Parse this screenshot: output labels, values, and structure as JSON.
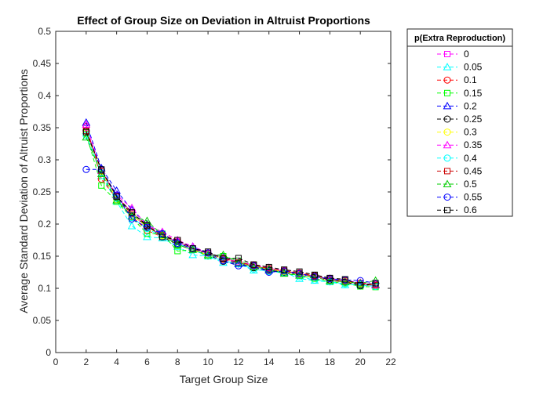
{
  "chart_data": {
    "type": "line",
    "title": "Effect of Group Size on Deviation in Altruist Proportions",
    "xlabel": "Target Group Size",
    "ylabel": "Average Standard Deviation of Altruist Proportions",
    "xlim": [
      0,
      22
    ],
    "ylim": [
      0,
      0.5
    ],
    "xticks": [
      "0",
      "2",
      "4",
      "6",
      "8",
      "10",
      "12",
      "14",
      "16",
      "18",
      "20",
      "22"
    ],
    "yticks": [
      "0",
      "0.05",
      "0.1",
      "0.15",
      "0.2",
      "0.25",
      "0.3",
      "0.35",
      "0.4",
      "0.45",
      "0.5"
    ],
    "grid": false,
    "legend": {
      "title": "p(Extra Reproduction)",
      "placement": "outside-right"
    },
    "x": [
      2,
      3,
      4,
      5,
      6,
      7,
      8,
      9,
      10,
      11,
      12,
      13,
      14,
      15,
      16,
      17,
      18,
      19,
      20,
      21
    ],
    "series": [
      {
        "name": "0",
        "color": "#ff00ff",
        "marker": "square",
        "values": [
          0.35,
          0.28,
          0.245,
          0.215,
          0.195,
          0.182,
          0.172,
          0.162,
          0.155,
          0.148,
          0.14,
          0.135,
          0.13,
          0.126,
          0.122,
          0.118,
          0.114,
          0.11,
          0.107,
          0.104
        ]
      },
      {
        "name": "0.05",
        "color": "#00ffff",
        "marker": "triangle",
        "values": [
          0.345,
          0.275,
          0.235,
          0.197,
          0.18,
          0.178,
          0.165,
          0.152,
          0.15,
          0.14,
          0.138,
          0.128,
          0.128,
          0.125,
          0.115,
          0.112,
          0.11,
          0.105,
          0.106,
          0.105
        ]
      },
      {
        "name": "0.1",
        "color": "#ff0000",
        "marker": "circle",
        "values": [
          0.352,
          0.27,
          0.24,
          0.212,
          0.19,
          0.18,
          0.173,
          0.16,
          0.155,
          0.145,
          0.14,
          0.135,
          0.13,
          0.128,
          0.124,
          0.12,
          0.112,
          0.11,
          0.107,
          0.105
        ]
      },
      {
        "name": "0.15",
        "color": "#00ff00",
        "marker": "square",
        "values": [
          0.34,
          0.26,
          0.235,
          0.21,
          0.185,
          0.185,
          0.158,
          0.16,
          0.15,
          0.15,
          0.143,
          0.136,
          0.128,
          0.124,
          0.12,
          0.115,
          0.11,
          0.108,
          0.103,
          0.102
        ]
      },
      {
        "name": "0.2",
        "color": "#0000ff",
        "marker": "triangle",
        "values": [
          0.358,
          0.287,
          0.252,
          0.222,
          0.2,
          0.185,
          0.172,
          0.165,
          0.155,
          0.148,
          0.138,
          0.135,
          0.128,
          0.125,
          0.122,
          0.118,
          0.115,
          0.112,
          0.108,
          0.105
        ]
      },
      {
        "name": "0.25",
        "color": "#000000",
        "marker": "circle",
        "values": [
          0.345,
          0.285,
          0.242,
          0.215,
          0.197,
          0.18,
          0.168,
          0.16,
          0.152,
          0.142,
          0.138,
          0.132,
          0.128,
          0.125,
          0.122,
          0.12,
          0.113,
          0.11,
          0.104,
          0.106
        ]
      },
      {
        "name": "0.3",
        "color": "#ffff00",
        "marker": "circle",
        "values": [
          0.342,
          0.282,
          0.238,
          0.215,
          0.195,
          0.182,
          0.17,
          0.16,
          0.152,
          0.147,
          0.14,
          0.134,
          0.13,
          0.126,
          0.122,
          0.118,
          0.115,
          0.111,
          0.107,
          0.105
        ]
      },
      {
        "name": "0.35",
        "color": "#ff00ff",
        "marker": "triangle",
        "values": [
          0.355,
          0.283,
          0.245,
          0.225,
          0.198,
          0.188,
          0.175,
          0.165,
          0.155,
          0.147,
          0.142,
          0.136,
          0.132,
          0.127,
          0.123,
          0.119,
          0.115,
          0.112,
          0.109,
          0.106
        ]
      },
      {
        "name": "0.4",
        "color": "#00ffff",
        "marker": "circle",
        "values": [
          0.338,
          0.28,
          0.24,
          0.21,
          0.193,
          0.18,
          0.17,
          0.16,
          0.15,
          0.143,
          0.138,
          0.13,
          0.126,
          0.124,
          0.118,
          0.113,
          0.11,
          0.107,
          0.105,
          0.103
        ]
      },
      {
        "name": "0.45",
        "color": "#cc0000",
        "marker": "square",
        "values": [
          0.345,
          0.283,
          0.243,
          0.218,
          0.198,
          0.183,
          0.175,
          0.162,
          0.155,
          0.147,
          0.14,
          0.136,
          0.131,
          0.127,
          0.123,
          0.119,
          0.115,
          0.112,
          0.108,
          0.105
        ]
      },
      {
        "name": "0.5",
        "color": "#00cc00",
        "marker": "triangle",
        "values": [
          0.335,
          0.278,
          0.237,
          0.212,
          0.205,
          0.183,
          0.168,
          0.16,
          0.152,
          0.152,
          0.14,
          0.133,
          0.13,
          0.123,
          0.12,
          0.117,
          0.112,
          0.11,
          0.108,
          0.112
        ]
      },
      {
        "name": "0.55",
        "color": "#0000ff",
        "marker": "circle",
        "values": [
          0.285,
          0.285,
          0.245,
          0.208,
          0.195,
          0.185,
          0.17,
          0.162,
          0.155,
          0.143,
          0.135,
          0.135,
          0.125,
          0.127,
          0.123,
          0.118,
          0.115,
          0.113,
          0.112,
          0.108
        ]
      },
      {
        "name": "0.6",
        "color": "#000000",
        "marker": "square",
        "values": [
          0.343,
          0.285,
          0.243,
          0.218,
          0.198,
          0.18,
          0.175,
          0.162,
          0.157,
          0.146,
          0.147,
          0.137,
          0.133,
          0.129,
          0.126,
          0.121,
          0.116,
          0.114,
          0.105,
          0.108
        ]
      }
    ]
  }
}
